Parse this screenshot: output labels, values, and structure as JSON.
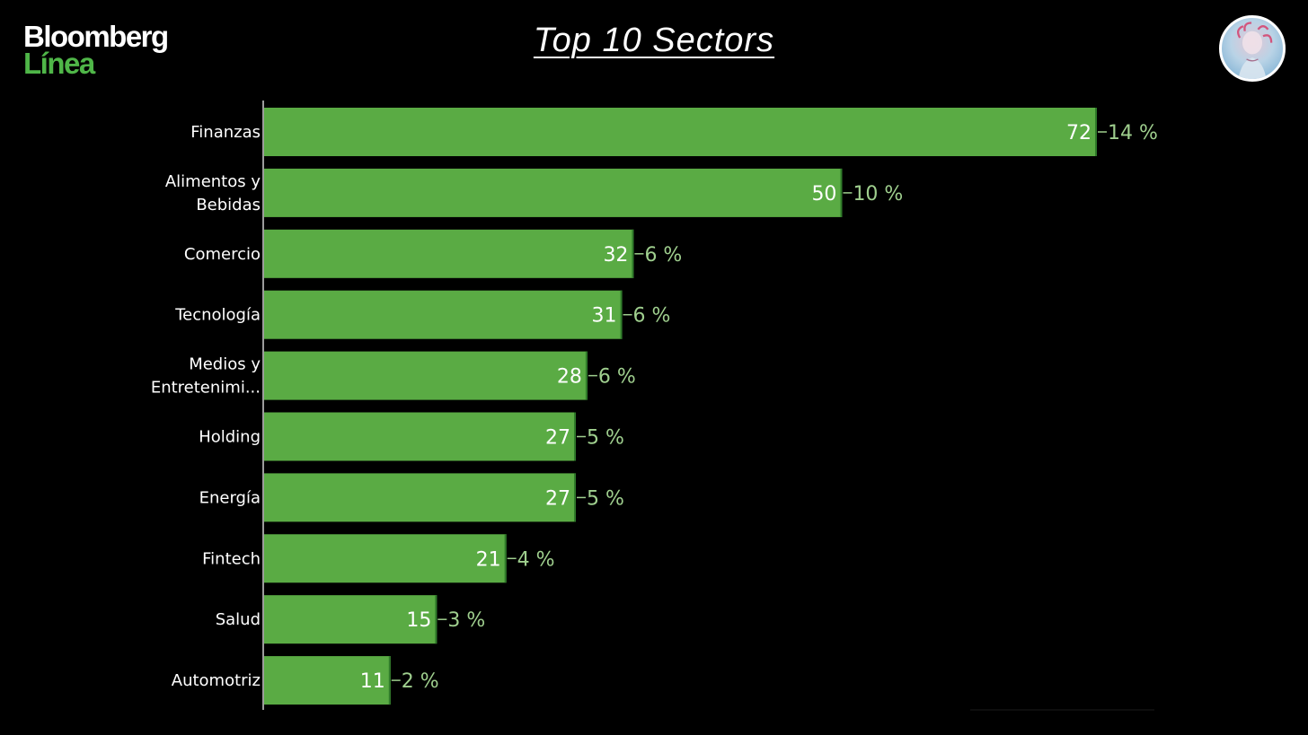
{
  "header": {
    "brand_line1": "Bloomberg",
    "brand_line2": "Línea",
    "title": "Top 10 Sectors"
  },
  "avatar": {
    "icon": "statue-portrait-icon"
  },
  "colors": {
    "background": "#000000",
    "bar": "#5aab44",
    "bar_edge": "#2f7a2a",
    "percent_text": "#9fcf8e",
    "brand_green": "#4fb648"
  },
  "chart_data": {
    "type": "bar",
    "orientation": "horizontal",
    "categories": [
      [
        "Finanzas"
      ],
      [
        "Alimentos y",
        "Bebidas"
      ],
      [
        "Comercio"
      ],
      [
        "Tecnología"
      ],
      [
        "Medios y",
        "Entretenimi..."
      ],
      [
        "Holding"
      ],
      [
        "Energía"
      ],
      [
        "Fintech"
      ],
      [
        "Salud"
      ],
      [
        "Automotriz"
      ]
    ],
    "values": [
      72,
      50,
      32,
      31,
      28,
      27,
      27,
      21,
      15,
      11
    ],
    "percent_labels": [
      "14 %",
      "10 %",
      "6 %",
      "6 %",
      "6 %",
      "5 %",
      "5 %",
      "4 %",
      "3 %",
      "2 %"
    ],
    "title": "Top 10 Sectors",
    "xlabel": "",
    "ylabel": "",
    "xlim": [
      0,
      72
    ],
    "grid": false,
    "legend": "none"
  }
}
